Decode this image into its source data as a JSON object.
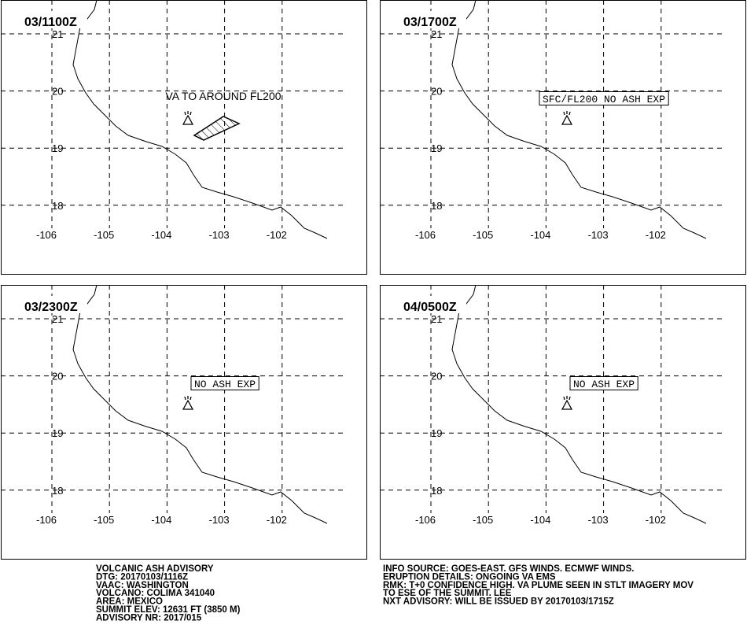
{
  "panels": [
    {
      "time": "03/1100Z",
      "annotation": "VA TO AROUND FL200",
      "ash": true
    },
    {
      "time": "03/1700Z",
      "annotation": "SFC/FL200 NO ASH EXP",
      "ash": false
    },
    {
      "time": "03/2300Z",
      "annotation": "NO ASH EXP",
      "ash": false
    },
    {
      "time": "04/0500Z",
      "annotation": "NO ASH EXP",
      "ash": false
    }
  ],
  "longitudes": [
    -106,
    -105,
    -104,
    -103,
    -102
  ],
  "latitudes": [
    21,
    20,
    19,
    18
  ],
  "footer_left": [
    "VOLCANIC ASH ADVISORY",
    "DTG: 20170103/1116Z",
    "VAAC: WASHINGTON",
    "VOLCANO: COLIMA 341040",
    "AREA: MEXICO",
    "SUMMIT ELEV: 12631 FT (3850 M)",
    "ADVISORY NR: 2017/015"
  ],
  "footer_right": [
    "INFO SOURCE: GOES-EAST. GFS WINDS. ECMWF WINDS.",
    "ERUPTION DETAILS: ONGOING VA EMS",
    "RMK: T+0 CONFIDENCE HIGH. VA PLUME SEEN IN STLT IMAGERY MOV",
    "TO ESE OF THE SUMMIT.    LEE",
    "NXT ADVISORY: WILL BE ISSUED BY 20170103/1715Z"
  ]
}
